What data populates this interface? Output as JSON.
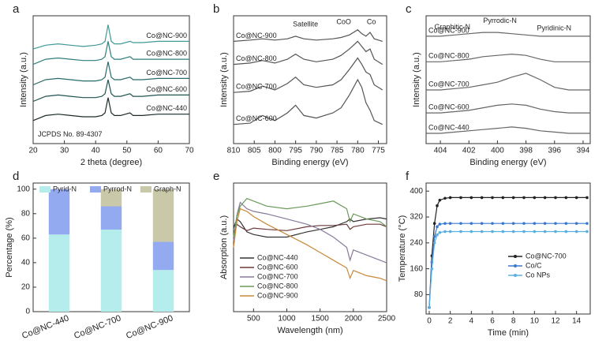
{
  "chart_data": [
    {
      "type": "line",
      "panel": "a",
      "xlabel": "2 theta (degree)",
      "ylabel": "Intensity (a.u.)",
      "legend": "inline",
      "xlim": [
        20,
        70
      ],
      "xticks": [
        20,
        30,
        40,
        50,
        60,
        70
      ],
      "ylim": [
        0,
        100
      ],
      "annotations": [
        "JCPDS No. 89-4307"
      ],
      "x": [
        20,
        24,
        28,
        32,
        36,
        40,
        42,
        43,
        44,
        45,
        46,
        48,
        51,
        52,
        55,
        60,
        65,
        70
      ],
      "series": [
        {
          "name": "Co@NC-900",
          "color": "#3f9a98",
          "values": [
            74,
            77,
            78,
            77,
            76,
            77,
            78,
            80,
            93,
            80,
            78,
            78,
            80,
            79,
            79,
            80,
            80,
            80
          ]
        },
        {
          "name": "Co@NC-800",
          "color": "#2f7f7d",
          "values": [
            62,
            66,
            67,
            66,
            65,
            65,
            66,
            68,
            80,
            68,
            66,
            66,
            68,
            66,
            66,
            66,
            66,
            66
          ]
        },
        {
          "name": "Co@NC-700",
          "color": "#286b6a",
          "values": [
            46,
            50,
            51,
            50,
            49,
            49,
            50,
            52,
            64,
            52,
            50,
            50,
            52,
            50,
            50,
            51,
            51,
            51
          ]
        },
        {
          "name": "Co@NC-600",
          "color": "#1f5352",
          "values": [
            33,
            37,
            38,
            37,
            36,
            36,
            37,
            39,
            50,
            39,
            37,
            37,
            39,
            37,
            37,
            38,
            38,
            38
          ]
        },
        {
          "name": "Co@NC-440",
          "color": "#1a2b2a",
          "values": [
            18,
            22,
            23,
            22,
            21,
            21,
            22,
            24,
            36,
            24,
            22,
            22,
            24,
            22,
            22,
            23,
            23,
            23
          ]
        }
      ]
    },
    {
      "type": "line",
      "panel": "b",
      "xlabel": "Binding energy (eV)",
      "ylabel": "Intensity (a.u.)",
      "legend": "inline",
      "xlim": [
        810,
        773
      ],
      "xticks": [
        810,
        805,
        800,
        795,
        790,
        785,
        780,
        775
      ],
      "ylim": [
        0,
        100
      ],
      "annotations": [
        "Satellite",
        "CoO",
        "Co"
      ],
      "x": [
        810,
        806,
        803,
        800,
        797,
        795,
        793,
        790,
        786,
        784,
        782,
        780,
        779,
        778,
        777,
        776,
        774
      ],
      "series": [
        {
          "name": "Co@NC-900",
          "color": "#555",
          "values": [
            80,
            81,
            82,
            81,
            82,
            84,
            82,
            81,
            82,
            83,
            85,
            89,
            86,
            84,
            87,
            82,
            80
          ]
        },
        {
          "name": "Co@NC-800",
          "color": "#555",
          "values": [
            62,
            63,
            65,
            63,
            66,
            70,
            66,
            64,
            66,
            69,
            74,
            80,
            76,
            72,
            74,
            66,
            62
          ]
        },
        {
          "name": "Co@NC-700",
          "color": "#555",
          "values": [
            40,
            41,
            45,
            42,
            47,
            52,
            46,
            44,
            46,
            50,
            58,
            67,
            62,
            56,
            54,
            46,
            42
          ]
        },
        {
          "name": "Co@NC-600",
          "color": "#555",
          "values": [
            15,
            16,
            22,
            18,
            24,
            30,
            22,
            20,
            24,
            28,
            38,
            50,
            44,
            32,
            26,
            18,
            15
          ]
        }
      ]
    },
    {
      "type": "line",
      "panel": "c",
      "xlabel": "Binding energy (eV)",
      "ylabel": "Intensity (a.u.)",
      "legend": "inline",
      "xlim": [
        405,
        393.5
      ],
      "xticks": [
        404,
        402,
        400,
        398,
        396,
        394
      ],
      "ylim": [
        0,
        100
      ],
      "annotations": [
        "Graphitic-N",
        "Pyrrodic-N",
        "Pyridinic-N"
      ],
      "x": [
        405,
        404,
        403,
        402,
        401,
        400,
        399,
        398,
        397,
        396,
        395,
        394,
        393.5
      ],
      "series": [
        {
          "name": "Co@NC-900",
          "color": "#666",
          "values": [
            84,
            84,
            85,
            86,
            87,
            87,
            86,
            85,
            84,
            84,
            84,
            84,
            84
          ]
        },
        {
          "name": "Co@NC-800",
          "color": "#666",
          "values": [
            64,
            64,
            65,
            66,
            68,
            69,
            70,
            69,
            66,
            64,
            64,
            64,
            64
          ]
        },
        {
          "name": "Co@NC-700",
          "color": "#666",
          "values": [
            42,
            42,
            43,
            44,
            46,
            48,
            52,
            55,
            50,
            44,
            42,
            42,
            42
          ]
        },
        {
          "name": "Co@NC-600",
          "color": "#666",
          "values": [
            24,
            24,
            25,
            26,
            28,
            30,
            31,
            30,
            27,
            25,
            24,
            24,
            24
          ]
        },
        {
          "name": "Co@NC-440",
          "color": "#666",
          "values": [
            8,
            8,
            9,
            10,
            11,
            12,
            13,
            12,
            10,
            9,
            8,
            8,
            8
          ]
        }
      ]
    },
    {
      "type": "bar",
      "panel": "d",
      "ylabel": "Percentage (%)",
      "legend": "top",
      "stacked": true,
      "ylim": [
        0,
        105
      ],
      "yticks": [
        0,
        20,
        40,
        60,
        80,
        100
      ],
      "categories": [
        "Co@NC-440",
        "Co@NC-700",
        "Co@NC-900"
      ],
      "series": [
        {
          "name": "Pyrid-N",
          "color": "#b5ecec",
          "values": [
            63,
            67,
            34
          ]
        },
        {
          "name": "Pyrrod-N",
          "color": "#93aaf0",
          "values": [
            37,
            19,
            23
          ]
        },
        {
          "name": "Graph-N",
          "color": "#c9c9a9",
          "values": [
            0,
            14,
            43
          ]
        }
      ]
    },
    {
      "type": "line",
      "panel": "e",
      "xlabel": "Wavelength (nm)",
      "ylabel": "Absorption (a.u.)",
      "legend": "lower left",
      "xlim": [
        200,
        2500
      ],
      "xticks": [
        500,
        1000,
        1500,
        2000,
        2500
      ],
      "ylim": [
        0,
        100
      ],
      "x": [
        200,
        250,
        300,
        400,
        500,
        700,
        1000,
        1300,
        1500,
        1700,
        1900,
        1950,
        2000,
        2200,
        2400,
        2500
      ],
      "series": [
        {
          "name": "Co@NC-440",
          "color": "#333",
          "values": [
            65,
            72,
            70,
            62,
            60,
            58,
            58,
            62,
            64,
            66,
            70,
            72,
            70,
            72,
            73,
            72
          ]
        },
        {
          "name": "Co@NC-600",
          "color": "#6b3a3a",
          "values": [
            60,
            68,
            66,
            63,
            65,
            64,
            63,
            66,
            67,
            67,
            68,
            64,
            66,
            68,
            68,
            66
          ]
        },
        {
          "name": "Co@NC-700",
          "color": "#8a7a9a",
          "values": [
            55,
            75,
            85,
            80,
            78,
            76,
            72,
            68,
            64,
            58,
            50,
            40,
            48,
            44,
            40,
            38
          ]
        },
        {
          "name": "Co@NC-800",
          "color": "#6a9a5a",
          "values": [
            58,
            74,
            82,
            88,
            86,
            82,
            80,
            82,
            84,
            86,
            80,
            70,
            76,
            72,
            70,
            66
          ]
        },
        {
          "name": "Co@NC-900",
          "color": "#c8883a",
          "values": [
            50,
            70,
            80,
            78,
            74,
            68,
            60,
            52,
            46,
            40,
            34,
            26,
            32,
            28,
            26,
            24
          ]
        }
      ]
    },
    {
      "type": "line",
      "panel": "f",
      "xlabel": "Time (min)",
      "ylabel": "Temperature (°C)",
      "legend": "right",
      "markers": true,
      "xlim": [
        -0.3,
        15.3
      ],
      "xticks": [
        0,
        2,
        4,
        6,
        8,
        10,
        12,
        14
      ],
      "ylim": [
        20,
        425
      ],
      "yticks": [
        80,
        160,
        240,
        320,
        400
      ],
      "x": [
        0,
        0.25,
        0.5,
        0.75,
        1,
        1.5,
        2,
        3,
        4,
        5,
        6,
        7,
        8,
        9,
        10,
        11,
        12,
        13,
        14,
        15
      ],
      "series": [
        {
          "name": "Co@NC-700",
          "color": "#222",
          "values": [
            40,
            200,
            300,
            355,
            372,
            378,
            380,
            380,
            380,
            380,
            380,
            380,
            380,
            380,
            380,
            380,
            380,
            380,
            380,
            380
          ]
        },
        {
          "name": "Co/C",
          "color": "#3a7ad0",
          "values": [
            40,
            180,
            260,
            290,
            298,
            300,
            300,
            300,
            300,
            300,
            300,
            300,
            300,
            300,
            300,
            300,
            300,
            300,
            300,
            300
          ]
        },
        {
          "name": "Co NPs",
          "color": "#5ab0e0",
          "values": [
            40,
            160,
            240,
            265,
            272,
            275,
            275,
            275,
            275,
            275,
            275,
            275,
            275,
            275,
            275,
            275,
            275,
            275,
            275,
            275
          ]
        }
      ]
    }
  ]
}
